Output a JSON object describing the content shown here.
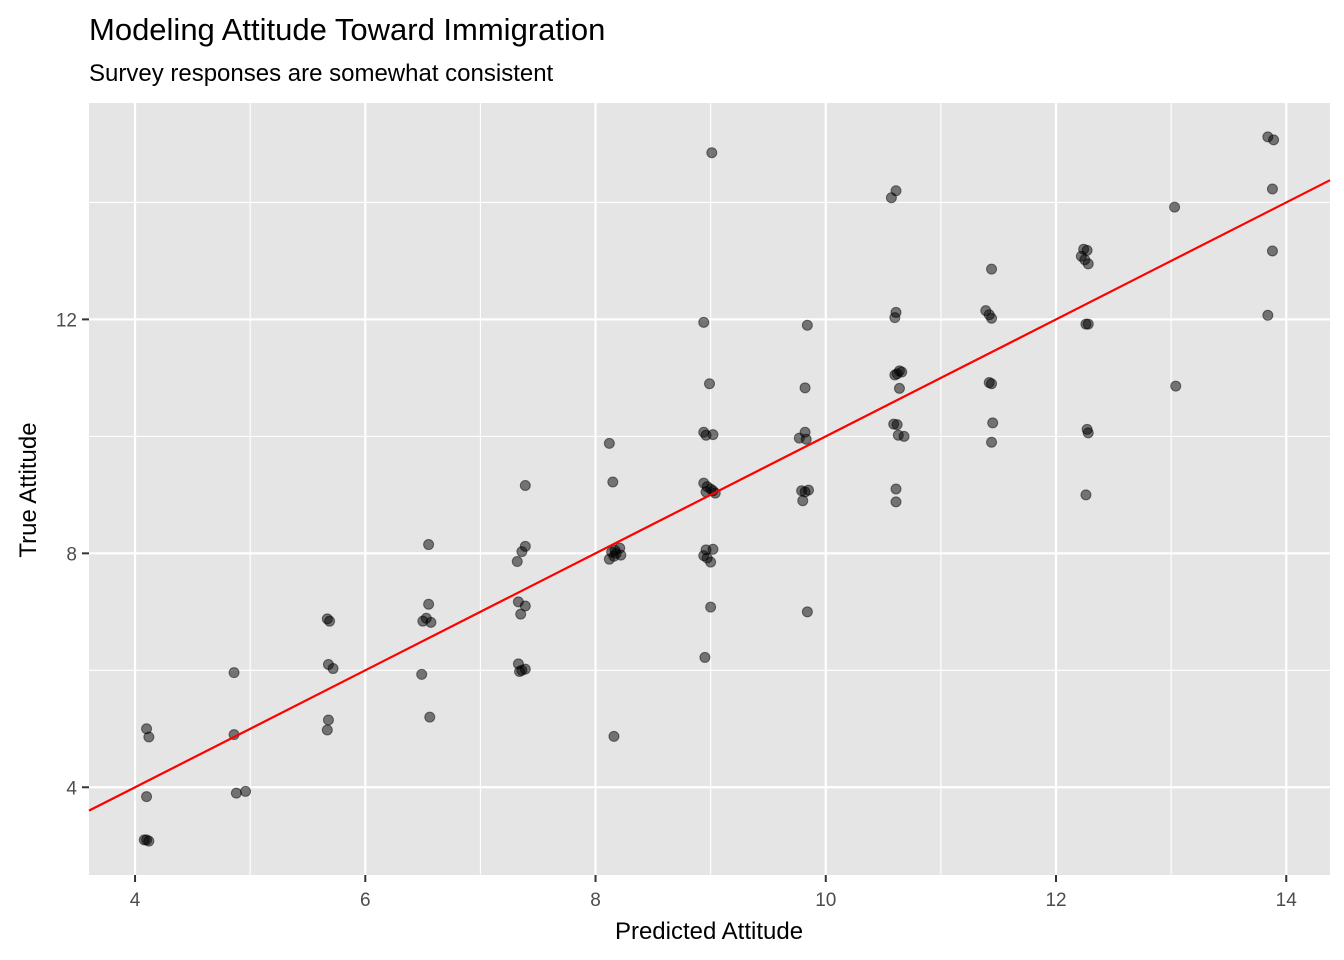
{
  "chart_data": {
    "type": "scatter",
    "title": "Modeling Attitude Toward Immigration",
    "subtitle": "Survey responses are somewhat consistent",
    "xlabel": "Predicted Attitude",
    "ylabel": "True Attitude",
    "xlim": [
      3.6,
      14.38
    ],
    "ylim": [
      2.5,
      15.7
    ],
    "x_ticks": [
      4,
      6,
      8,
      10,
      12,
      14
    ],
    "y_ticks": [
      4,
      8,
      12
    ],
    "x_tick_labels": [
      "4",
      "6",
      "8",
      "10",
      "12",
      "14"
    ],
    "y_tick_labels": [
      "4",
      "8",
      "12"
    ],
    "grid": true,
    "legend": "none",
    "point_color": "#000000",
    "point_alpha": 0.5,
    "line_color": "#ff0000",
    "panel_color": "#e5e5e5",
    "fit_line": {
      "slope": 1,
      "intercept": 0
    },
    "points": [
      {
        "x": 4.1,
        "y": 5.0
      },
      {
        "x": 4.12,
        "y": 4.86
      },
      {
        "x": 4.1,
        "y": 3.84
      },
      {
        "x": 4.08,
        "y": 3.1
      },
      {
        "x": 4.1,
        "y": 3.1
      },
      {
        "x": 4.12,
        "y": 3.08
      },
      {
        "x": 4.86,
        "y": 5.96
      },
      {
        "x": 4.86,
        "y": 4.9
      },
      {
        "x": 4.88,
        "y": 3.9
      },
      {
        "x": 4.96,
        "y": 3.93
      },
      {
        "x": 5.67,
        "y": 6.88
      },
      {
        "x": 5.69,
        "y": 6.84
      },
      {
        "x": 5.68,
        "y": 6.1
      },
      {
        "x": 5.72,
        "y": 6.03
      },
      {
        "x": 5.68,
        "y": 5.15
      },
      {
        "x": 5.67,
        "y": 4.98
      },
      {
        "x": 6.55,
        "y": 8.15
      },
      {
        "x": 6.55,
        "y": 7.13
      },
      {
        "x": 6.53,
        "y": 6.89
      },
      {
        "x": 6.5,
        "y": 6.84
      },
      {
        "x": 6.57,
        "y": 6.82
      },
      {
        "x": 6.49,
        "y": 5.93
      },
      {
        "x": 6.56,
        "y": 5.2
      },
      {
        "x": 7.39,
        "y": 9.16
      },
      {
        "x": 7.39,
        "y": 8.12
      },
      {
        "x": 7.36,
        "y": 8.03
      },
      {
        "x": 7.32,
        "y": 7.86
      },
      {
        "x": 7.33,
        "y": 7.17
      },
      {
        "x": 7.39,
        "y": 7.1
      },
      {
        "x": 7.35,
        "y": 6.96
      },
      {
        "x": 7.33,
        "y": 6.11
      },
      {
        "x": 7.39,
        "y": 6.02
      },
      {
        "x": 7.36,
        "y": 6.0
      },
      {
        "x": 7.34,
        "y": 5.98
      },
      {
        "x": 8.12,
        "y": 9.88
      },
      {
        "x": 8.15,
        "y": 9.22
      },
      {
        "x": 8.21,
        "y": 8.09
      },
      {
        "x": 8.17,
        "y": 8.05
      },
      {
        "x": 8.14,
        "y": 8.02
      },
      {
        "x": 8.18,
        "y": 8.0
      },
      {
        "x": 8.22,
        "y": 7.97
      },
      {
        "x": 8.16,
        "y": 7.95
      },
      {
        "x": 8.12,
        "y": 7.9
      },
      {
        "x": 8.16,
        "y": 4.87
      },
      {
        "x": 9.01,
        "y": 14.85
      },
      {
        "x": 8.94,
        "y": 11.95
      },
      {
        "x": 8.99,
        "y": 10.9
      },
      {
        "x": 8.94,
        "y": 10.07
      },
      {
        "x": 8.96,
        "y": 10.02
      },
      {
        "x": 9.02,
        "y": 10.03
      },
      {
        "x": 8.94,
        "y": 9.2
      },
      {
        "x": 8.97,
        "y": 9.14
      },
      {
        "x": 9.0,
        "y": 9.1
      },
      {
        "x": 9.02,
        "y": 9.07
      },
      {
        "x": 8.96,
        "y": 9.05
      },
      {
        "x": 9.04,
        "y": 9.03
      },
      {
        "x": 8.96,
        "y": 8.06
      },
      {
        "x": 9.02,
        "y": 8.07
      },
      {
        "x": 8.94,
        "y": 7.96
      },
      {
        "x": 8.97,
        "y": 7.92
      },
      {
        "x": 9.0,
        "y": 7.85
      },
      {
        "x": 9.0,
        "y": 7.08
      },
      {
        "x": 8.95,
        "y": 6.22
      },
      {
        "x": 9.84,
        "y": 11.9
      },
      {
        "x": 9.82,
        "y": 10.83
      },
      {
        "x": 9.82,
        "y": 10.07
      },
      {
        "x": 9.77,
        "y": 9.97
      },
      {
        "x": 9.83,
        "y": 9.95
      },
      {
        "x": 9.79,
        "y": 9.07
      },
      {
        "x": 9.82,
        "y": 9.05
      },
      {
        "x": 9.85,
        "y": 9.08
      },
      {
        "x": 9.8,
        "y": 8.9
      },
      {
        "x": 9.84,
        "y": 7.0
      },
      {
        "x": 10.61,
        "y": 14.2
      },
      {
        "x": 10.57,
        "y": 14.08
      },
      {
        "x": 10.61,
        "y": 12.12
      },
      {
        "x": 10.6,
        "y": 12.03
      },
      {
        "x": 10.64,
        "y": 11.12
      },
      {
        "x": 10.66,
        "y": 11.1
      },
      {
        "x": 10.62,
        "y": 11.07
      },
      {
        "x": 10.6,
        "y": 11.05
      },
      {
        "x": 10.64,
        "y": 10.82
      },
      {
        "x": 10.59,
        "y": 10.21
      },
      {
        "x": 10.62,
        "y": 10.2
      },
      {
        "x": 10.63,
        "y": 10.02
      },
      {
        "x": 10.68,
        "y": 10.0
      },
      {
        "x": 10.61,
        "y": 9.1
      },
      {
        "x": 10.61,
        "y": 8.88
      },
      {
        "x": 11.44,
        "y": 12.86
      },
      {
        "x": 11.39,
        "y": 12.15
      },
      {
        "x": 11.42,
        "y": 12.08
      },
      {
        "x": 11.44,
        "y": 12.02
      },
      {
        "x": 11.42,
        "y": 10.92
      },
      {
        "x": 11.44,
        "y": 10.9
      },
      {
        "x": 11.45,
        "y": 10.23
      },
      {
        "x": 11.44,
        "y": 9.9
      },
      {
        "x": 12.24,
        "y": 13.2
      },
      {
        "x": 12.27,
        "y": 13.18
      },
      {
        "x": 12.22,
        "y": 13.08
      },
      {
        "x": 12.25,
        "y": 13.02
      },
      {
        "x": 12.28,
        "y": 12.95
      },
      {
        "x": 12.26,
        "y": 11.92
      },
      {
        "x": 12.28,
        "y": 11.92
      },
      {
        "x": 12.27,
        "y": 10.12
      },
      {
        "x": 12.28,
        "y": 10.06
      },
      {
        "x": 12.26,
        "y": 9.0
      },
      {
        "x": 13.03,
        "y": 13.92
      },
      {
        "x": 13.04,
        "y": 10.86
      },
      {
        "x": 13.84,
        "y": 15.12
      },
      {
        "x": 13.89,
        "y": 15.07
      },
      {
        "x": 13.88,
        "y": 14.23
      },
      {
        "x": 13.88,
        "y": 13.17
      },
      {
        "x": 13.84,
        "y": 12.07
      }
    ]
  }
}
